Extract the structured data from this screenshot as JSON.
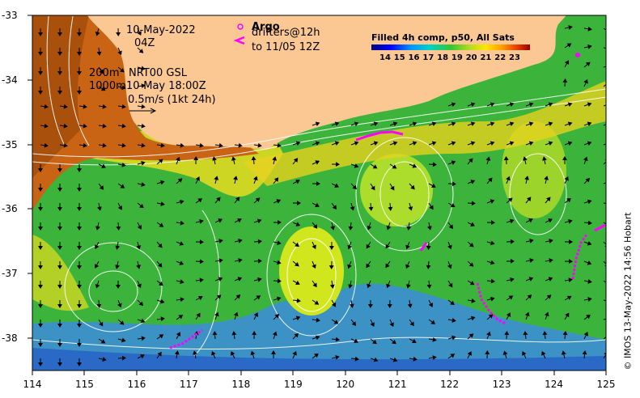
{
  "map": {
    "x_ticks": [
      "114",
      "115",
      "116",
      "117",
      "118",
      "119",
      "120",
      "121",
      "122",
      "123",
      "124",
      "125"
    ],
    "y_ticks": [
      "-33",
      "-34",
      "-35",
      "-36",
      "-37",
      "-38"
    ],
    "lon_range": [
      114,
      125
    ],
    "lat_range": [
      -38.5,
      -33
    ]
  },
  "legend": {
    "date": "10-May-2022",
    "time": "04Z",
    "depth1": "200m",
    "depth2": "1000m",
    "source": "NRT00 GSL",
    "valid": "10-May 18:00Z",
    "scale": "0.5m/s (1kt 24h)",
    "argo": "Argo",
    "drifters1": "drifters@12h",
    "drifters2": "to 11/05 12Z",
    "drifter_color": "#ff00ff"
  },
  "colorbar": {
    "title": "Filled 4h comp, p50, All Sats",
    "labels": [
      "14",
      "15",
      "16",
      "17",
      "18",
      "19",
      "20",
      "21",
      "22",
      "23"
    ]
  },
  "credit": "© IMOS 13-May-2022 14:56 Hobart",
  "colors": {
    "land": "#fbc893",
    "sea_warm": "#d2691e",
    "sea_mid": "#3cb43c",
    "sea_cold": "#3c8cdc"
  }
}
